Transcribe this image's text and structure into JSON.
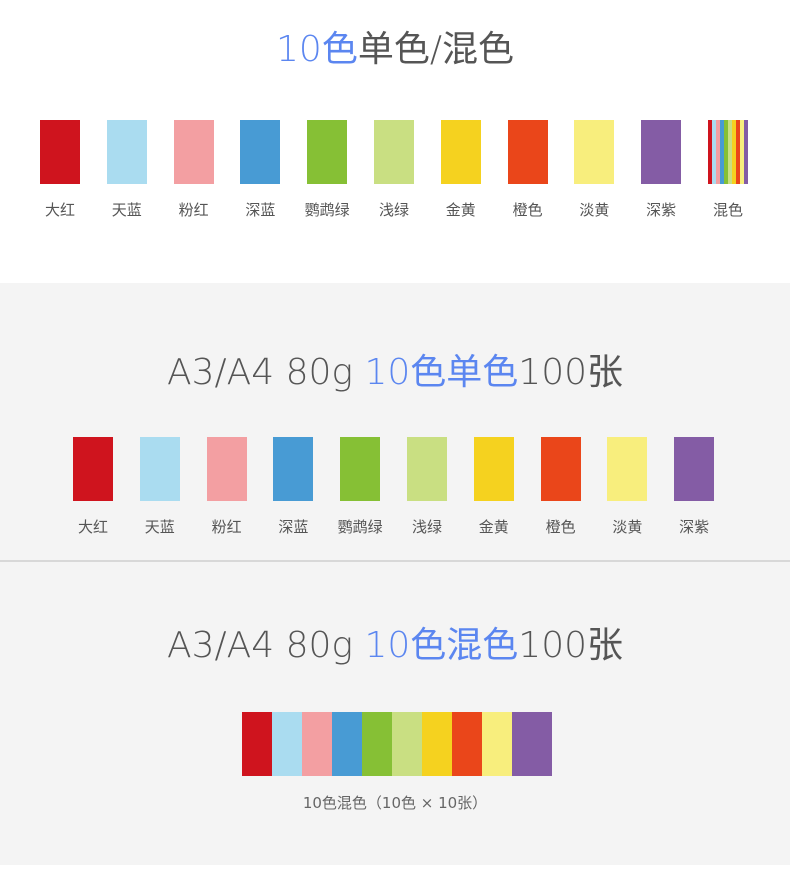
{
  "colors": [
    {
      "name": "大红",
      "hex": "#cf141e"
    },
    {
      "name": "天蓝",
      "hex": "#aadcf0"
    },
    {
      "name": "粉红",
      "hex": "#f39fa2"
    },
    {
      "name": "深蓝",
      "hex": "#489bd4"
    },
    {
      "name": "鹦鹉绿",
      "hex": "#86c035"
    },
    {
      "name": "浅绿",
      "hex": "#c9df82"
    },
    {
      "name": "金黄",
      "hex": "#f5d21f"
    },
    {
      "name": "橙色",
      "hex": "#ea461a"
    },
    {
      "name": "淡黄",
      "hex": "#f8ee7d"
    },
    {
      "name": "深紫",
      "hex": "#845ca5"
    }
  ],
  "mixed_label": "混色",
  "section1": {
    "title_hl": "10色",
    "title_rest": "单色/混色"
  },
  "section2": {
    "title_pre": "A3/A4 80g ",
    "title_hl": "10色单色",
    "title_post": "100张"
  },
  "section3": {
    "title_pre": "A3/A4 80g ",
    "title_hl": "10色混色",
    "title_post": "100张",
    "caption": "10色混色（10色 × 10张）"
  },
  "accent": "#5b86f0"
}
